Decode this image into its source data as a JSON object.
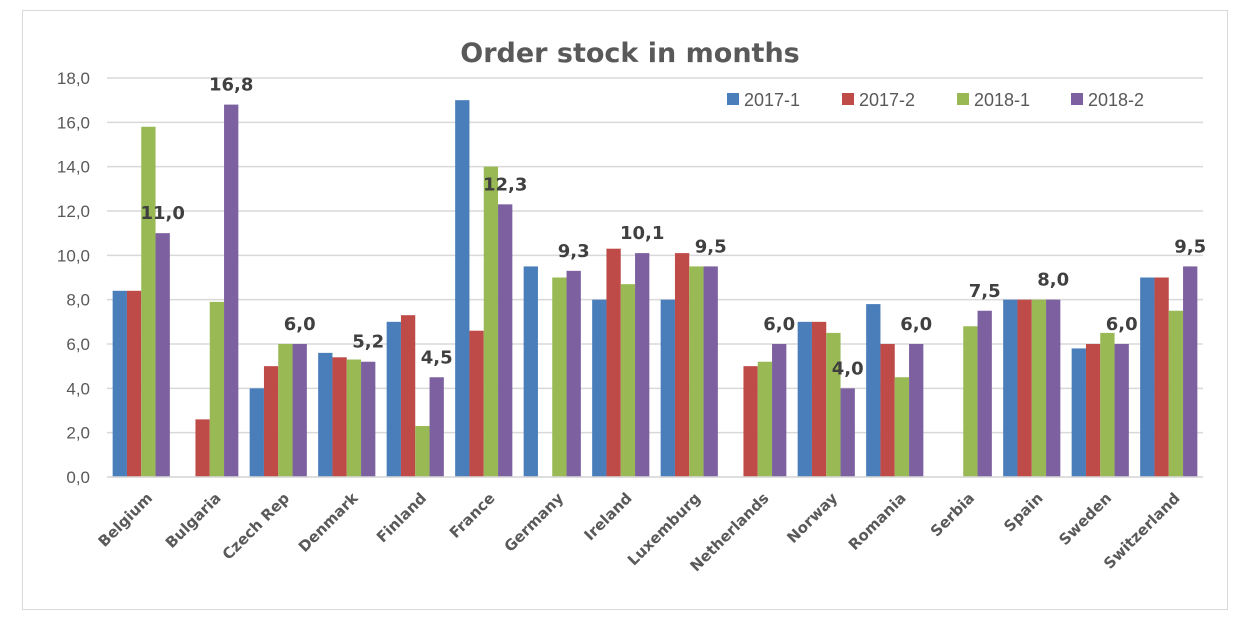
{
  "chart_data": {
    "type": "bar",
    "title": "Order stock in months",
    "xlabel": "",
    "ylabel": "",
    "ylim": [
      0,
      18
    ],
    "yticks": [
      "0,0",
      "2,0",
      "4,0",
      "6,0",
      "8,0",
      "10,0",
      "12,0",
      "14,0",
      "16,0",
      "18,0"
    ],
    "grid": true,
    "legend_position": "top-right",
    "categories": [
      "Belgium",
      "Bulgaria",
      "Czech Rep",
      "Denmark",
      "Finland",
      "France",
      "Germany",
      "Ireland",
      "Luxemburg",
      "Netherlands",
      "Norway",
      "Romania",
      "Serbia",
      "Spain",
      "Sweden",
      "Switzerland"
    ],
    "series": [
      {
        "name": "2017-1",
        "color": "#4a7ebb",
        "values": [
          8.4,
          null,
          4.0,
          5.6,
          7.0,
          17.0,
          9.5,
          8.0,
          8.0,
          null,
          7.0,
          7.8,
          null,
          8.0,
          5.8,
          9.0
        ]
      },
      {
        "name": "2017-2",
        "color": "#be4b48",
        "values": [
          8.4,
          2.6,
          5.0,
          5.4,
          7.3,
          6.6,
          null,
          10.3,
          10.1,
          5.0,
          7.0,
          6.0,
          null,
          8.0,
          6.0,
          9.0
        ]
      },
      {
        "name": "2018-1",
        "color": "#98b954",
        "values": [
          15.8,
          7.9,
          6.0,
          5.3,
          2.3,
          14.0,
          9.0,
          8.7,
          9.5,
          5.2,
          6.5,
          4.5,
          6.8,
          8.0,
          6.5,
          7.5
        ]
      },
      {
        "name": "2018-2",
        "color": "#7d60a0",
        "values": [
          11.0,
          16.8,
          6.0,
          5.2,
          4.5,
          12.3,
          9.3,
          10.1,
          9.5,
          6.0,
          4.0,
          6.0,
          7.5,
          8.0,
          6.0,
          9.5
        ],
        "data_labels": [
          "11,0",
          "16,8",
          "6,0",
          "5,2",
          "4,5",
          "12,3",
          "9,3",
          "10,1",
          "9,5",
          "6,0",
          "4,0",
          "6,0",
          "7,5",
          "8,0",
          "6,0",
          "9,5"
        ]
      }
    ]
  }
}
